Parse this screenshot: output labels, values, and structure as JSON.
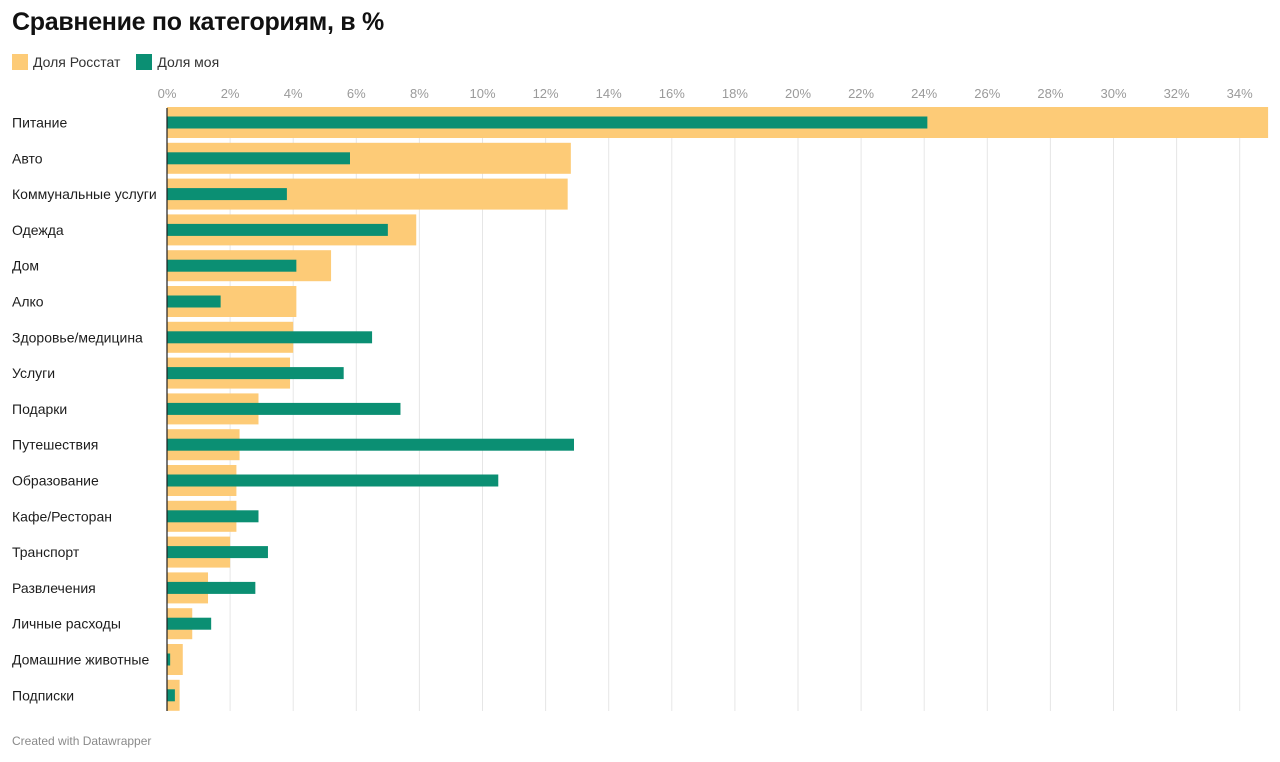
{
  "chart_data": {
    "type": "bar",
    "orientation": "horizontal",
    "title": "Сравнение по категориям, в %",
    "footer": "Created with Datawrapper",
    "x_ticks": [
      "0%",
      "2%",
      "4%",
      "6%",
      "8%",
      "10%",
      "12%",
      "14%",
      "16%",
      "18%",
      "20%",
      "22%",
      "24%",
      "26%",
      "28%",
      "30%",
      "32%",
      "34%"
    ],
    "xlim": [
      0,
      34.9
    ],
    "grid": true,
    "legend_position": "top-left",
    "categories": [
      "Питание",
      "Авто",
      "Коммунальные услуги",
      "Одежда",
      "Дом",
      "Алко",
      "Здоровье/медицина",
      "Услуги",
      "Подарки",
      "Путешествия",
      "Образование",
      "Кафе/Ресторан",
      "Транспорт",
      "Развлечения",
      "Личные расходы",
      "Домашние животные",
      "Подписки"
    ],
    "series": [
      {
        "name": "Доля Росстат",
        "color": "#fdcb77",
        "values": [
          34.9,
          12.8,
          12.7,
          7.9,
          5.2,
          4.1,
          4.0,
          3.9,
          2.9,
          2.3,
          2.2,
          2.2,
          2.0,
          1.3,
          0.8,
          0.5,
          0.4
        ]
      },
      {
        "name": "Доля моя",
        "color": "#0b8f73",
        "values": [
          24.1,
          5.8,
          3.8,
          7.0,
          4.1,
          1.7,
          6.5,
          5.6,
          7.4,
          12.9,
          10.5,
          2.9,
          3.2,
          2.8,
          1.4,
          0.1,
          0.25
        ]
      }
    ]
  }
}
